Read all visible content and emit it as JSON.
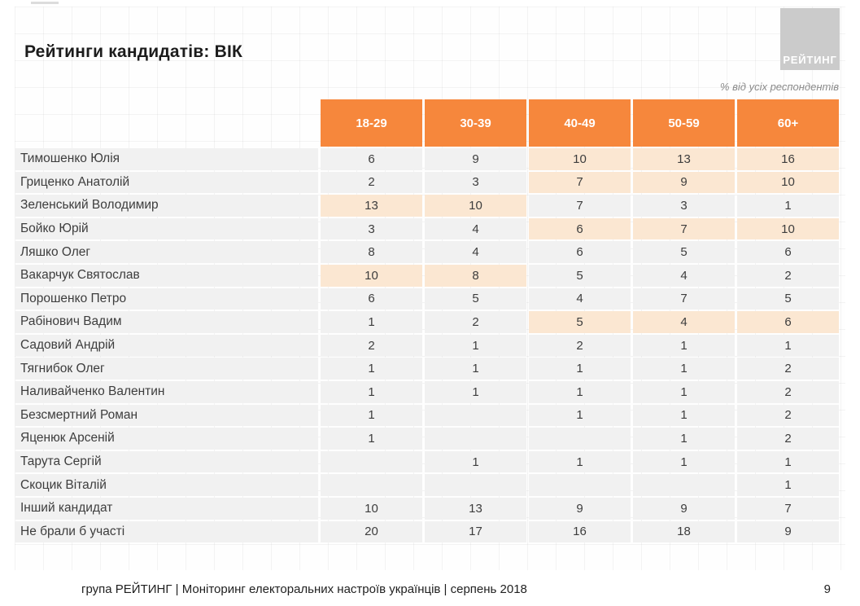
{
  "slide": {
    "title": "Рейтинги кандидатів: ВІК",
    "subtitle": "% від усіх респондентів",
    "logo_text": "РЕЙТИНГ",
    "footer": "група РЕЙТИНГ |  Моніторинг електоральних настроїв українців | серпень  2018",
    "page_number": "9"
  },
  "colors": {
    "header_bg": "#f6873c",
    "highlight_bg": "#fbe7d2",
    "row_bg": "#f1f1f1",
    "logo_bg": "#cbcbcb"
  },
  "chart_data": {
    "type": "table",
    "title": "Рейтинги кандидатів: ВІК",
    "unit": "% від усіх респондентів",
    "columns": [
      "18-29",
      "30-39",
      "40-49",
      "50-59",
      "60+"
    ],
    "rows": [
      {
        "name": "Тимошенко Юлія",
        "values": [
          "6",
          "9",
          "10",
          "13",
          "16"
        ],
        "highlight": [
          false,
          false,
          true,
          true,
          true
        ]
      },
      {
        "name": "Гриценко Анатолій",
        "values": [
          "2",
          "3",
          "7",
          "9",
          "10"
        ],
        "highlight": [
          false,
          false,
          true,
          true,
          true
        ]
      },
      {
        "name": "Зеленський Володимир",
        "values": [
          "13",
          "10",
          "7",
          "3",
          "1"
        ],
        "highlight": [
          true,
          true,
          false,
          false,
          false
        ]
      },
      {
        "name": "Бойко Юрій",
        "values": [
          "3",
          "4",
          "6",
          "7",
          "10"
        ],
        "highlight": [
          false,
          false,
          true,
          true,
          true
        ]
      },
      {
        "name": "Ляшко Олег",
        "values": [
          "8",
          "4",
          "6",
          "5",
          "6"
        ],
        "highlight": [
          false,
          false,
          false,
          false,
          false
        ]
      },
      {
        "name": "Вакарчук Святослав",
        "values": [
          "10",
          "8",
          "5",
          "4",
          "2"
        ],
        "highlight": [
          true,
          true,
          false,
          false,
          false
        ]
      },
      {
        "name": "Порошенко Петро",
        "values": [
          "6",
          "5",
          "4",
          "7",
          "5"
        ],
        "highlight": [
          false,
          false,
          false,
          false,
          false
        ]
      },
      {
        "name": "Рабінович Вадим",
        "values": [
          "1",
          "2",
          "5",
          "4",
          "6"
        ],
        "highlight": [
          false,
          false,
          true,
          true,
          true
        ]
      },
      {
        "name": "Садовий Андрій",
        "values": [
          "2",
          "1",
          "2",
          "1",
          "1"
        ],
        "highlight": [
          false,
          false,
          false,
          false,
          false
        ]
      },
      {
        "name": "Тягнибок Олег",
        "values": [
          "1",
          "1",
          "1",
          "1",
          "2"
        ],
        "highlight": [
          false,
          false,
          false,
          false,
          false
        ]
      },
      {
        "name": "Наливайченко Валентин",
        "values": [
          "1",
          "1",
          "1",
          "1",
          "2"
        ],
        "highlight": [
          false,
          false,
          false,
          false,
          false
        ]
      },
      {
        "name": "Безсмертний Роман",
        "values": [
          "1",
          "",
          "1",
          "1",
          "2"
        ],
        "highlight": [
          false,
          false,
          false,
          false,
          false
        ]
      },
      {
        "name": "Яценюк Арсеній",
        "values": [
          "1",
          "",
          "",
          "1",
          "2"
        ],
        "highlight": [
          false,
          false,
          false,
          false,
          false
        ]
      },
      {
        "name": "Тарута Сергій",
        "values": [
          "",
          "1",
          "1",
          "1",
          "1"
        ],
        "highlight": [
          false,
          false,
          false,
          false,
          false
        ]
      },
      {
        "name": "Скоцик Віталій",
        "values": [
          "",
          "",
          "",
          "",
          "1"
        ],
        "highlight": [
          false,
          false,
          false,
          false,
          false
        ]
      },
      {
        "name": "Інший кандидат",
        "values": [
          "10",
          "13",
          "9",
          "9",
          "7"
        ],
        "highlight": [
          false,
          false,
          false,
          false,
          false
        ]
      },
      {
        "name": "Не брали б участі",
        "values": [
          "20",
          "17",
          "16",
          "18",
          "9"
        ],
        "highlight": [
          false,
          false,
          false,
          false,
          false
        ]
      }
    ]
  }
}
